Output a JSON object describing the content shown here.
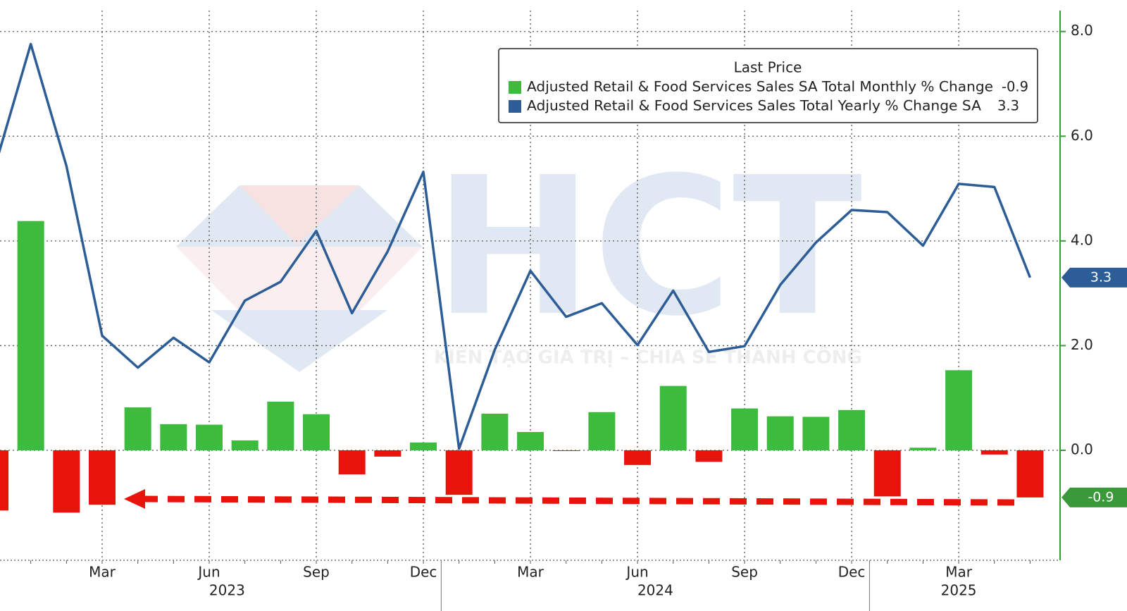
{
  "chart_data": {
    "type": "bar",
    "x": [
      "2022-12",
      "2023-01",
      "2023-02",
      "2023-03",
      "2023-04",
      "2023-05",
      "2023-06",
      "2023-07",
      "2023-08",
      "2023-09",
      "2023-10",
      "2023-11",
      "2023-12",
      "2024-01",
      "2024-02",
      "2024-03",
      "2024-04",
      "2024-05",
      "2024-06",
      "2024-07",
      "2024-08",
      "2024-09",
      "2024-10",
      "2024-11",
      "2024-12",
      "2025-01",
      "2025-02",
      "2025-03",
      "2025-04",
      "2025-05"
    ],
    "xticks": [
      {
        "value": "2023-03",
        "label": "Mar"
      },
      {
        "value": "2023-06",
        "label": "Jun"
      },
      {
        "value": "2023-09",
        "label": "Sep"
      },
      {
        "value": "2023-12",
        "label": "Dec"
      },
      {
        "value": "2024-03",
        "label": "Mar"
      },
      {
        "value": "2024-06",
        "label": "Jun"
      },
      {
        "value": "2024-09",
        "label": "Sep"
      },
      {
        "value": "2024-12",
        "label": "Dec"
      },
      {
        "value": "2025-03",
        "label": "Mar"
      }
    ],
    "year_labels": [
      "2023",
      "2024",
      "2025"
    ],
    "ylim": [
      -2.1,
      8.4
    ],
    "yticks": [
      {
        "value": 0,
        "label": "0.0"
      },
      {
        "value": 2,
        "label": "2.0"
      },
      {
        "value": 4,
        "label": "4.0"
      },
      {
        "value": 6,
        "label": "6.0"
      },
      {
        "value": 8,
        "label": "8.0"
      }
    ],
    "grid": true,
    "legend_title": "Last Price",
    "series": [
      {
        "name": "Adjusted Retail & Food Services Sales SA Total Monthly % Change",
        "type": "bar",
        "color": "#3dbb3d",
        "negative_color": "#e8140c",
        "values": [
          -1.15,
          4.38,
          -1.19,
          -1.04,
          0.82,
          0.5,
          0.49,
          0.19,
          0.93,
          0.69,
          -0.46,
          -0.12,
          0.15,
          -0.85,
          0.7,
          0.35,
          -0.01,
          0.73,
          -0.28,
          1.23,
          -0.22,
          0.8,
          0.65,
          0.64,
          0.77,
          -0.88,
          0.05,
          1.53,
          -0.08,
          -0.9
        ],
        "last_label": "-0.9"
      },
      {
        "name": "Adjusted Retail & Food Services Sales Total Yearly % Change SA",
        "type": "line",
        "color": "#2d5d96",
        "values": [
          5.43,
          7.76,
          5.43,
          2.19,
          1.58,
          2.15,
          1.68,
          2.86,
          3.22,
          4.19,
          2.62,
          3.8,
          5.32,
          0.03,
          1.92,
          3.43,
          2.55,
          2.81,
          2.01,
          3.05,
          1.88,
          1.99,
          3.16,
          3.97,
          4.59,
          4.55,
          3.91,
          5.09,
          5.03,
          3.3
        ],
        "last_label": "3.3"
      }
    ],
    "watermark": {
      "logo": "HCT",
      "slogan": "KIẾN TẠO GIÁ TRỊ – CHIA SẺ THÀNH CÔNG"
    }
  }
}
